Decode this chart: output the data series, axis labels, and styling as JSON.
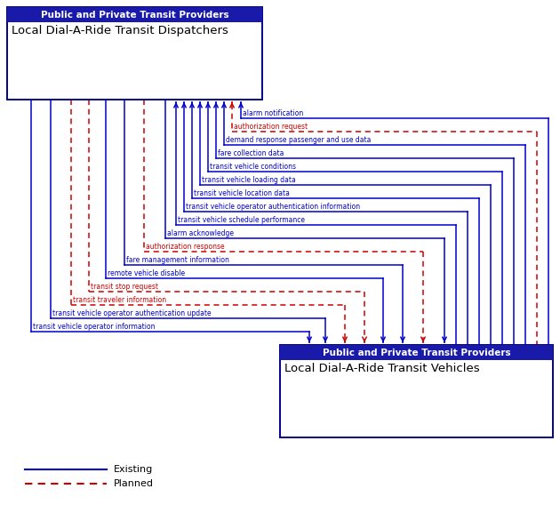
{
  "box1_header": "Public and Private Transit Providers",
  "box1_title": "Local Dial-A-Ride Transit Dispatchers",
  "box2_header": "Public and Private Transit Providers",
  "box2_title": "Local Dial-A-Ride Transit Vehicles",
  "header_bg": "#1a1aaa",
  "header_fg": "#FFFFFF",
  "box_border": "#00008B",
  "box_bg": "#FFFFFF",
  "blue": "#0000CC",
  "red": "#CC0000",
  "bg": "#FFFFFF",
  "flows_up": [
    {
      "label": "alarm notification",
      "color": "blue",
      "style": "solid"
    },
    {
      "label": "authorization request",
      "color": "red",
      "style": "dashed"
    },
    {
      "label": "demand response passenger and use data",
      "color": "blue",
      "style": "solid"
    },
    {
      "label": "fare collection data",
      "color": "blue",
      "style": "solid"
    },
    {
      "label": "transit vehicle conditions",
      "color": "blue",
      "style": "solid"
    },
    {
      "label": "transit vehicle loading data",
      "color": "blue",
      "style": "solid"
    },
    {
      "label": "transit vehicle location data",
      "color": "blue",
      "style": "solid"
    },
    {
      "label": "transit vehicle operator authentication information",
      "color": "blue",
      "style": "solid"
    },
    {
      "label": "transit vehicle schedule performance",
      "color": "blue",
      "style": "solid"
    }
  ],
  "flows_down": [
    {
      "label": "alarm acknowledge",
      "color": "blue",
      "style": "solid"
    },
    {
      "label": "authorization response",
      "color": "red",
      "style": "dashed"
    },
    {
      "label": "fare management information",
      "color": "blue",
      "style": "solid"
    },
    {
      "label": "remote vehicle disable",
      "color": "blue",
      "style": "solid"
    },
    {
      "label": "transit stop request",
      "color": "red",
      "style": "dashed"
    },
    {
      "label": "transit traveler information",
      "color": "red",
      "style": "dashed"
    },
    {
      "label": "transit vehicle operator authentication update",
      "color": "blue",
      "style": "solid"
    },
    {
      "label": "transit vehicle operator information",
      "color": "blue",
      "style": "solid"
    }
  ],
  "legend_existing": "Existing",
  "legend_planned": "Planned",
  "fig_w": 6.3,
  "fig_h": 5.86,
  "dpi": 100
}
